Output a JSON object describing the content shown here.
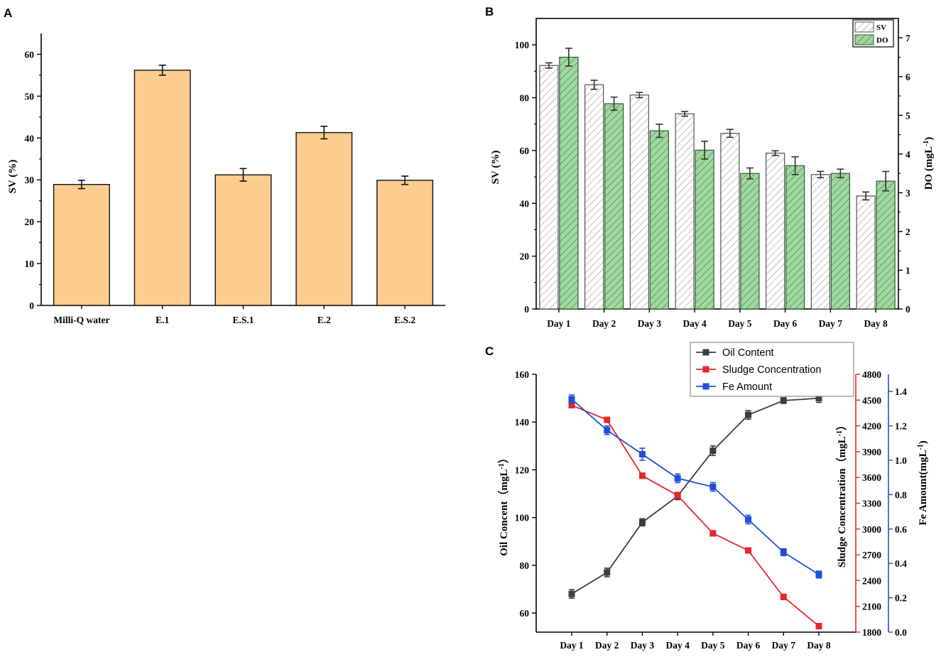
{
  "chart_data": [
    {
      "panel": "A",
      "type": "bar",
      "categories": [
        "Milli-Q water",
        "E.1",
        "E.S.1",
        "E.2",
        "E.S.2"
      ],
      "values": [
        28.9,
        56.2,
        31.2,
        41.3,
        29.9
      ],
      "errors": [
        1.0,
        1.2,
        1.5,
        1.5,
        1.0
      ],
      "xlabel": "",
      "ylabel": "SV (%)",
      "ylim": [
        0,
        65
      ],
      "yticks": [
        0,
        10,
        20,
        30,
        40,
        50,
        60
      ],
      "bar_color": "#fdcc8f",
      "edge_color": "#111111"
    },
    {
      "panel": "B",
      "type": "bar",
      "categories": [
        "Day 1",
        "Day 2",
        "Day 3",
        "Day 4",
        "Day 5",
        "Day 6",
        "Day 7",
        "Day 8"
      ],
      "series": [
        {
          "name": "SV",
          "axis": "left",
          "values": [
            92.2,
            84.9,
            81.0,
            73.9,
            66.5,
            59.0,
            50.9,
            42.8
          ],
          "errors": [
            1.0,
            1.7,
            1.0,
            0.9,
            1.5,
            0.9,
            1.2,
            1.5
          ],
          "fill": "#ffffff",
          "hatch": "#9a9a9a"
        },
        {
          "name": "DO",
          "axis": "right",
          "values": [
            6.5,
            5.3,
            4.6,
            4.1,
            3.5,
            3.7,
            3.5,
            3.3
          ],
          "errors": [
            0.23,
            0.17,
            0.17,
            0.23,
            0.14,
            0.23,
            0.11,
            0.25
          ],
          "fill": "#9fd8a0",
          "hatch": "#3b7a3d"
        }
      ],
      "ylabel_left": "SV (%)",
      "ylim_left": [
        0,
        110
      ],
      "yticks_left": [
        0,
        20,
        40,
        60,
        80,
        100
      ],
      "ylabel_right": "DO (mgL",
      "ylabel_right_sup": "-1",
      "ylabel_right_close": ")",
      "ylim_right": [
        0,
        7.5
      ],
      "yticks_right": [
        0,
        1,
        2,
        3,
        4,
        5,
        6,
        7
      ],
      "legend": [
        "SV",
        "DO"
      ],
      "legend_position": "top-right"
    },
    {
      "panel": "C",
      "type": "line",
      "x": [
        "Day 1",
        "Day 2",
        "Day 3",
        "Day 4",
        "Day 5",
        "Day 6",
        "Day 7",
        "Day 8"
      ],
      "series": [
        {
          "name": "Oil Content",
          "axis": "left",
          "color": "#3d3d3d",
          "values": [
            68,
            77,
            98,
            109,
            128,
            143,
            149,
            150
          ],
          "errors": [
            1.8,
            1.8,
            1.5,
            1.5,
            2.0,
            1.8,
            1.2,
            1.8
          ]
        },
        {
          "name": "Sludge Concentration",
          "axis": "right",
          "color": "#e8262b",
          "values": [
            4440,
            4270,
            3620,
            3390,
            2950,
            2750,
            2210,
            1870
          ],
          "errors": [
            30,
            30,
            30,
            30,
            30,
            30,
            30,
            30
          ]
        },
        {
          "name": "Fe Amount",
          "axis": "right2",
          "color": "#1f4fd8",
          "values": [
            1.355,
            1.175,
            1.035,
            0.895,
            0.845,
            0.655,
            0.465,
            0.335
          ],
          "errors": [
            0.025,
            0.025,
            0.035,
            0.025,
            0.025,
            0.025,
            0.02,
            0.02
          ]
        }
      ],
      "ylabel_left": "Oil Concent（mgL",
      "ylabel_left_sup": "-1",
      "ylabel_left_close": "）",
      "ylim_left": [
        52,
        160
      ],
      "yticks_left": [
        60,
        80,
        100,
        120,
        140,
        160
      ],
      "ylabel_right": "Sludge Concentration（mgL",
      "ylabel_right_sup": "-1",
      "ylabel_right_close": "）",
      "ylim_right": [
        1800,
        4800
      ],
      "yticks_right": [
        1800,
        2100,
        2400,
        2700,
        3000,
        3300,
        3600,
        3900,
        4200,
        4500,
        4800
      ],
      "ylabel_right2": "Fe Amount(mgL",
      "ylabel_right2_sup": "-1",
      "ylabel_right2_close": ")",
      "ylim_right2": [
        0.0,
        1.5
      ],
      "yticks_right2": [
        "0.0",
        "0.2",
        "0.4",
        "0.6",
        "0.8",
        "1.0",
        "1.2",
        "1.4"
      ],
      "legend": [
        "Oil Content",
        "Sludge Concentration",
        "Fe Amount"
      ],
      "legend_position": "top"
    }
  ]
}
